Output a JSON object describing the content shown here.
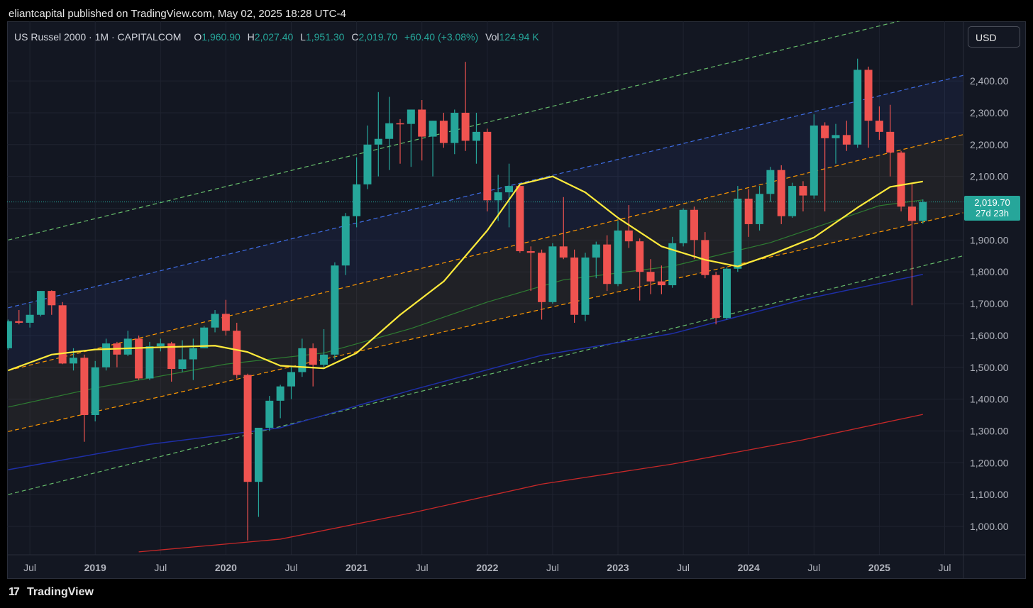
{
  "header": {
    "published_by": "eliantcapital published on TradingView.com, May 02, 2025 18:28 UTC-4"
  },
  "legend": {
    "symbol": "US Russel 2000 · 1M · CAPITALCOM",
    "open_label": "O",
    "open": "1,960.90",
    "high_label": "H",
    "high": "2,027.40",
    "low_label": "L",
    "low": "1,951.30",
    "close_label": "C",
    "close": "2,019.70",
    "change": "+60.40 (+3.08%)",
    "vol_label": "Vol",
    "vol": "124.94 K"
  },
  "currency": "USD",
  "last_price": {
    "price": "2,019.70",
    "countdown": "27d 23h"
  },
  "footer": {
    "brand": "TradingView",
    "logo": "tv-logo-icon"
  },
  "colors": {
    "up": "#26a69a",
    "down": "#ef5350",
    "sma_yellow": "#ffeb3b",
    "sma_green": "#2e7d32",
    "sma_blue": "#1e2fa8",
    "sma_red": "#c62828",
    "channel_orange": "#ff9800",
    "channel_blue": "#3d6be0",
    "channel_green": "#66bb6a"
  },
  "chart_data": {
    "type": "candlestick",
    "timeframe": "1M",
    "y_axis": {
      "min": 920,
      "max": 2500,
      "ticks": [
        1000,
        1100,
        1200,
        1300,
        1400,
        1500,
        1600,
        1700,
        1800,
        1900,
        2000,
        2100,
        2200,
        2300,
        2400
      ],
      "tick_labels": [
        "1,000.00",
        "1,100.00",
        "1,200.00",
        "1,300.00",
        "1,400.00",
        "1,500.00",
        "1,600.00",
        "1,700.00",
        "1,800.00",
        "1,900.00",
        "2,000.00",
        "2,100.00",
        "2,200.00",
        "2,300.00",
        "2,400.00"
      ]
    },
    "x_axis": {
      "start": "2018-05",
      "end": "2025-09",
      "ticks": [
        {
          "date": "2018-07",
          "label": "Jul",
          "major": false
        },
        {
          "date": "2019-01",
          "label": "2019",
          "major": true
        },
        {
          "date": "2019-07",
          "label": "Jul",
          "major": false
        },
        {
          "date": "2020-01",
          "label": "2020",
          "major": true
        },
        {
          "date": "2020-07",
          "label": "Jul",
          "major": false
        },
        {
          "date": "2021-01",
          "label": "2021",
          "major": true
        },
        {
          "date": "2021-07",
          "label": "Jul",
          "major": false
        },
        {
          "date": "2022-01",
          "label": "2022",
          "major": true
        },
        {
          "date": "2022-07",
          "label": "Jul",
          "major": false
        },
        {
          "date": "2023-01",
          "label": "2023",
          "major": true
        },
        {
          "date": "2023-07",
          "label": "Jul",
          "major": false
        },
        {
          "date": "2024-01",
          "label": "2024",
          "major": true
        },
        {
          "date": "2024-07",
          "label": "Jul",
          "major": false
        },
        {
          "date": "2025-01",
          "label": "2025",
          "major": true
        },
        {
          "date": "2025-07",
          "label": "Jul",
          "major": false
        }
      ]
    },
    "candles": [
      {
        "d": "2018-05",
        "o": 1560,
        "h": 1650,
        "l": 1555,
        "c": 1645
      },
      {
        "d": "2018-06",
        "o": 1645,
        "h": 1680,
        "l": 1635,
        "c": 1640
      },
      {
        "d": "2018-07",
        "o": 1640,
        "h": 1700,
        "l": 1625,
        "c": 1665
      },
      {
        "d": "2018-08",
        "o": 1665,
        "h": 1740,
        "l": 1660,
        "c": 1740
      },
      {
        "d": "2018-09",
        "o": 1740,
        "h": 1742,
        "l": 1665,
        "c": 1695
      },
      {
        "d": "2018-10",
        "o": 1695,
        "h": 1705,
        "l": 1510,
        "c": 1512
      },
      {
        "d": "2018-11",
        "o": 1512,
        "h": 1560,
        "l": 1490,
        "c": 1530
      },
      {
        "d": "2018-12",
        "o": 1530,
        "h": 1540,
        "l": 1266,
        "c": 1350
      },
      {
        "d": "2019-01",
        "o": 1350,
        "h": 1520,
        "l": 1330,
        "c": 1500
      },
      {
        "d": "2019-02",
        "o": 1500,
        "h": 1590,
        "l": 1490,
        "c": 1575
      },
      {
        "d": "2019-03",
        "o": 1575,
        "h": 1580,
        "l": 1500,
        "c": 1540
      },
      {
        "d": "2019-04",
        "o": 1540,
        "h": 1615,
        "l": 1535,
        "c": 1590
      },
      {
        "d": "2019-05",
        "o": 1590,
        "h": 1600,
        "l": 1460,
        "c": 1465
      },
      {
        "d": "2019-06",
        "o": 1465,
        "h": 1580,
        "l": 1460,
        "c": 1566
      },
      {
        "d": "2019-07",
        "o": 1566,
        "h": 1590,
        "l": 1550,
        "c": 1575
      },
      {
        "d": "2019-08",
        "o": 1575,
        "h": 1580,
        "l": 1455,
        "c": 1495
      },
      {
        "d": "2019-09",
        "o": 1495,
        "h": 1585,
        "l": 1485,
        "c": 1525
      },
      {
        "d": "2019-10",
        "o": 1525,
        "h": 1590,
        "l": 1460,
        "c": 1560
      },
      {
        "d": "2019-11",
        "o": 1560,
        "h": 1630,
        "l": 1560,
        "c": 1625
      },
      {
        "d": "2019-12",
        "o": 1625,
        "h": 1680,
        "l": 1610,
        "c": 1668
      },
      {
        "d": "2020-01",
        "o": 1668,
        "h": 1712,
        "l": 1600,
        "c": 1615
      },
      {
        "d": "2020-02",
        "o": 1615,
        "h": 1640,
        "l": 1465,
        "c": 1476
      },
      {
        "d": "2020-03",
        "o": 1476,
        "h": 1480,
        "l": 956,
        "c": 1140
      },
      {
        "d": "2020-04",
        "o": 1140,
        "h": 1305,
        "l": 1030,
        "c": 1310
      },
      {
        "d": "2020-05",
        "o": 1310,
        "h": 1410,
        "l": 1300,
        "c": 1395
      },
      {
        "d": "2020-06",
        "o": 1395,
        "h": 1445,
        "l": 1340,
        "c": 1440
      },
      {
        "d": "2020-07",
        "o": 1440,
        "h": 1500,
        "l": 1400,
        "c": 1485
      },
      {
        "d": "2020-08",
        "o": 1485,
        "h": 1590,
        "l": 1470,
        "c": 1560
      },
      {
        "d": "2020-09",
        "o": 1560,
        "h": 1575,
        "l": 1440,
        "c": 1508
      },
      {
        "d": "2020-10",
        "o": 1508,
        "h": 1620,
        "l": 1500,
        "c": 1540
      },
      {
        "d": "2020-11",
        "o": 1540,
        "h": 1830,
        "l": 1525,
        "c": 1820
      },
      {
        "d": "2020-12",
        "o": 1820,
        "h": 1985,
        "l": 1790,
        "c": 1975
      },
      {
        "d": "2021-01",
        "o": 1975,
        "h": 2160,
        "l": 1940,
        "c": 2075
      },
      {
        "d": "2021-02",
        "o": 2075,
        "h": 2260,
        "l": 2060,
        "c": 2200
      },
      {
        "d": "2021-03",
        "o": 2200,
        "h": 2365,
        "l": 2100,
        "c": 2218
      },
      {
        "d": "2021-04",
        "o": 2218,
        "h": 2350,
        "l": 2120,
        "c": 2267
      },
      {
        "d": "2021-05",
        "o": 2267,
        "h": 2280,
        "l": 2140,
        "c": 2265
      },
      {
        "d": "2021-06",
        "o": 2265,
        "h": 2310,
        "l": 2130,
        "c": 2310
      },
      {
        "d": "2021-07",
        "o": 2310,
        "h": 2340,
        "l": 2150,
        "c": 2225
      },
      {
        "d": "2021-08",
        "o": 2225,
        "h": 2275,
        "l": 2100,
        "c": 2275
      },
      {
        "d": "2021-09",
        "o": 2275,
        "h": 2300,
        "l": 2190,
        "c": 2205
      },
      {
        "d": "2021-10",
        "o": 2205,
        "h": 2310,
        "l": 2170,
        "c": 2300
      },
      {
        "d": "2021-11",
        "o": 2300,
        "h": 2460,
        "l": 2180,
        "c": 2212
      },
      {
        "d": "2021-12",
        "o": 2212,
        "h": 2300,
        "l": 2140,
        "c": 2240
      },
      {
        "d": "2022-01",
        "o": 2240,
        "h": 2250,
        "l": 1990,
        "c": 2025
      },
      {
        "d": "2022-02",
        "o": 2025,
        "h": 2105,
        "l": 1960,
        "c": 2050
      },
      {
        "d": "2022-03",
        "o": 2050,
        "h": 2140,
        "l": 1940,
        "c": 2070
      },
      {
        "d": "2022-04",
        "o": 2070,
        "h": 2075,
        "l": 1860,
        "c": 1865
      },
      {
        "d": "2022-05",
        "o": 1865,
        "h": 1880,
        "l": 1740,
        "c": 1860
      },
      {
        "d": "2022-06",
        "o": 1860,
        "h": 1870,
        "l": 1650,
        "c": 1705
      },
      {
        "d": "2022-07",
        "o": 1705,
        "h": 1890,
        "l": 1700,
        "c": 1880
      },
      {
        "d": "2022-08",
        "o": 1880,
        "h": 2035,
        "l": 1840,
        "c": 1845
      },
      {
        "d": "2022-09",
        "o": 1845,
        "h": 1870,
        "l": 1640,
        "c": 1665
      },
      {
        "d": "2022-10",
        "o": 1665,
        "h": 1860,
        "l": 1645,
        "c": 1845
      },
      {
        "d": "2022-11",
        "o": 1845,
        "h": 1895,
        "l": 1780,
        "c": 1886
      },
      {
        "d": "2022-12",
        "o": 1886,
        "h": 1915,
        "l": 1740,
        "c": 1762
      },
      {
        "d": "2023-01",
        "o": 1762,
        "h": 1960,
        "l": 1755,
        "c": 1930
      },
      {
        "d": "2023-02",
        "o": 1930,
        "h": 2010,
        "l": 1875,
        "c": 1896
      },
      {
        "d": "2023-03",
        "o": 1896,
        "h": 1905,
        "l": 1710,
        "c": 1800
      },
      {
        "d": "2023-04",
        "o": 1800,
        "h": 1840,
        "l": 1730,
        "c": 1770
      },
      {
        "d": "2023-05",
        "o": 1770,
        "h": 1820,
        "l": 1730,
        "c": 1758
      },
      {
        "d": "2023-06",
        "o": 1758,
        "h": 1910,
        "l": 1750,
        "c": 1890
      },
      {
        "d": "2023-07",
        "o": 1890,
        "h": 2000,
        "l": 1880,
        "c": 1995
      },
      {
        "d": "2023-08",
        "o": 1995,
        "h": 2005,
        "l": 1840,
        "c": 1900
      },
      {
        "d": "2023-09",
        "o": 1900,
        "h": 1925,
        "l": 1780,
        "c": 1790
      },
      {
        "d": "2023-10",
        "o": 1790,
        "h": 1800,
        "l": 1635,
        "c": 1655
      },
      {
        "d": "2023-11",
        "o": 1655,
        "h": 1815,
        "l": 1650,
        "c": 1810
      },
      {
        "d": "2023-12",
        "o": 1810,
        "h": 2070,
        "l": 1800,
        "c": 2030
      },
      {
        "d": "2024-01",
        "o": 2030,
        "h": 2060,
        "l": 1910,
        "c": 1950
      },
      {
        "d": "2024-02",
        "o": 1950,
        "h": 2070,
        "l": 1930,
        "c": 2045
      },
      {
        "d": "2024-03",
        "o": 2045,
        "h": 2130,
        "l": 2020,
        "c": 2120
      },
      {
        "d": "2024-04",
        "o": 2120,
        "h": 2135,
        "l": 1950,
        "c": 1975
      },
      {
        "d": "2024-05",
        "o": 1975,
        "h": 2080,
        "l": 1970,
        "c": 2070
      },
      {
        "d": "2024-06",
        "o": 2070,
        "h": 2085,
        "l": 1990,
        "c": 2040
      },
      {
        "d": "2024-07",
        "o": 2040,
        "h": 2295,
        "l": 2030,
        "c": 2260
      },
      {
        "d": "2024-08",
        "o": 2260,
        "h": 2270,
        "l": 1990,
        "c": 2220
      },
      {
        "d": "2024-09",
        "o": 2220,
        "h": 2265,
        "l": 2140,
        "c": 2230
      },
      {
        "d": "2024-10",
        "o": 2230,
        "h": 2275,
        "l": 2180,
        "c": 2200
      },
      {
        "d": "2024-11",
        "o": 2200,
        "h": 2470,
        "l": 2190,
        "c": 2435
      },
      {
        "d": "2024-12",
        "o": 2435,
        "h": 2445,
        "l": 2190,
        "c": 2275
      },
      {
        "d": "2025-01",
        "o": 2275,
        "h": 2320,
        "l": 2215,
        "c": 2240
      },
      {
        "d": "2025-02",
        "o": 2240,
        "h": 2325,
        "l": 2100,
        "c": 2175
      },
      {
        "d": "2025-03",
        "o": 2175,
        "h": 2180,
        "l": 1990,
        "c": 2005
      },
      {
        "d": "2025-04",
        "o": 2005,
        "h": 2080,
        "l": 1695,
        "c": 1960
      },
      {
        "d": "2025-05",
        "o": 1960,
        "h": 2027.4,
        "l": 1951.3,
        "c": 2019.7
      }
    ],
    "sma_yellow": [
      {
        "d": "2018-05",
        "v": 1490
      },
      {
        "d": "2018-09",
        "v": 1540
      },
      {
        "d": "2019-01",
        "v": 1556
      },
      {
        "d": "2019-06",
        "v": 1562
      },
      {
        "d": "2019-12",
        "v": 1568
      },
      {
        "d": "2020-03",
        "v": 1548
      },
      {
        "d": "2020-06",
        "v": 1505
      },
      {
        "d": "2020-10",
        "v": 1497
      },
      {
        "d": "2021-01",
        "v": 1545
      },
      {
        "d": "2021-05",
        "v": 1665
      },
      {
        "d": "2021-09",
        "v": 1770
      },
      {
        "d": "2022-01",
        "v": 1930
      },
      {
        "d": "2022-04",
        "v": 2075
      },
      {
        "d": "2022-07",
        "v": 2100
      },
      {
        "d": "2022-10",
        "v": 2050
      },
      {
        "d": "2023-01",
        "v": 1970
      },
      {
        "d": "2023-05",
        "v": 1880
      },
      {
        "d": "2023-09",
        "v": 1838
      },
      {
        "d": "2023-12",
        "v": 1817
      },
      {
        "d": "2024-03",
        "v": 1853
      },
      {
        "d": "2024-07",
        "v": 1908
      },
      {
        "d": "2024-11",
        "v": 2002
      },
      {
        "d": "2025-02",
        "v": 2067
      },
      {
        "d": "2025-05",
        "v": 2084
      }
    ],
    "sma_green": [
      {
        "d": "2018-05",
        "v": 1375
      },
      {
        "d": "2019-01",
        "v": 1435
      },
      {
        "d": "2020-01",
        "v": 1510
      },
      {
        "d": "2020-10",
        "v": 1545
      },
      {
        "d": "2021-06",
        "v": 1622
      },
      {
        "d": "2022-01",
        "v": 1705
      },
      {
        "d": "2022-08",
        "v": 1775
      },
      {
        "d": "2023-06",
        "v": 1818
      },
      {
        "d": "2024-03",
        "v": 1892
      },
      {
        "d": "2025-01",
        "v": 2008
      },
      {
        "d": "2025-05",
        "v": 2026
      }
    ],
    "sma_blue": [
      {
        "d": "2018-05",
        "v": 1178
      },
      {
        "d": "2019-06",
        "v": 1258
      },
      {
        "d": "2020-06",
        "v": 1310
      },
      {
        "d": "2021-06",
        "v": 1428
      },
      {
        "d": "2022-06",
        "v": 1538
      },
      {
        "d": "2023-06",
        "v": 1606
      },
      {
        "d": "2024-06",
        "v": 1713
      },
      {
        "d": "2025-05",
        "v": 1792
      }
    ],
    "sma_red": [
      {
        "d": "2019-05",
        "v": 920
      },
      {
        "d": "2020-06",
        "v": 960
      },
      {
        "d": "2021-06",
        "v": 1042
      },
      {
        "d": "2022-06",
        "v": 1133
      },
      {
        "d": "2023-06",
        "v": 1196
      },
      {
        "d": "2024-06",
        "v": 1272
      },
      {
        "d": "2025-05",
        "v": 1352
      }
    ],
    "channel": {
      "start": "2018-05",
      "end": "2025-09",
      "orange_lower": [
        1298,
        1988
      ],
      "orange_upper": [
        1490,
        2234
      ],
      "blue": [
        1687,
        2420
      ],
      "green_lower": [
        1100,
        1853
      ],
      "green_upper": [
        1900,
        2640
      ]
    },
    "last_price_line": 2019.7
  }
}
